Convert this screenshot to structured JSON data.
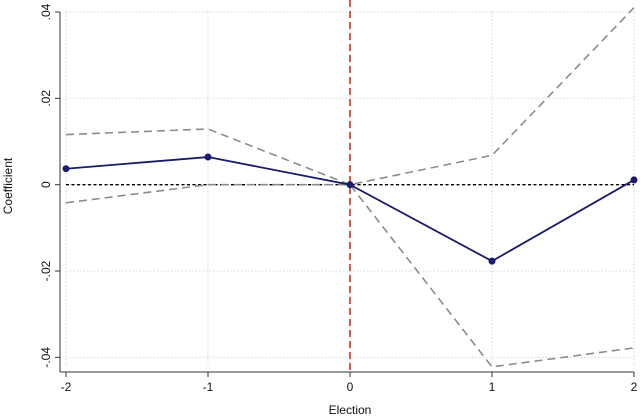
{
  "chart_data": {
    "type": "line",
    "xlabel": "Election",
    "ylabel": "Coefficient",
    "x": [
      -2,
      -1,
      0,
      1,
      2
    ],
    "xlim": [
      -2,
      2
    ],
    "ylim": [
      -0.042,
      0.04
    ],
    "x_ticks": [
      -2,
      -1,
      0,
      1,
      2
    ],
    "x_tick_labels": [
      "-2",
      "-1",
      "0",
      "1",
      "2"
    ],
    "y_ticks": [
      -0.04,
      -0.02,
      0,
      0.02,
      0.04
    ],
    "y_tick_labels": [
      "-.04",
      "-.02",
      "0",
      ".02",
      ".04"
    ],
    "grid": true,
    "reference_lines": {
      "horizontal_y": 0,
      "vertical_x": 0
    },
    "series": [
      {
        "role": "estimate",
        "values": [
          0.0037,
          0.0064,
          0.0,
          -0.0177,
          0.0011
        ],
        "color": "#1a1a6e",
        "style": "solid",
        "markers": true
      },
      {
        "role": "upper-ci",
        "values": [
          0.0116,
          0.0129,
          0.0,
          0.0068,
          0.041
        ],
        "color": "#8c8c8c",
        "style": "dashed"
      },
      {
        "role": "lower-ci",
        "values": [
          -0.0042,
          0.0,
          0.0,
          -0.0422,
          -0.0378
        ],
        "color": "#8c8c8c",
        "style": "dashed"
      }
    ],
    "colors": {
      "zero_line": "#000000",
      "event_line": "#c0392b",
      "grid": "#d6d6d6",
      "axis": "#333333"
    }
  }
}
